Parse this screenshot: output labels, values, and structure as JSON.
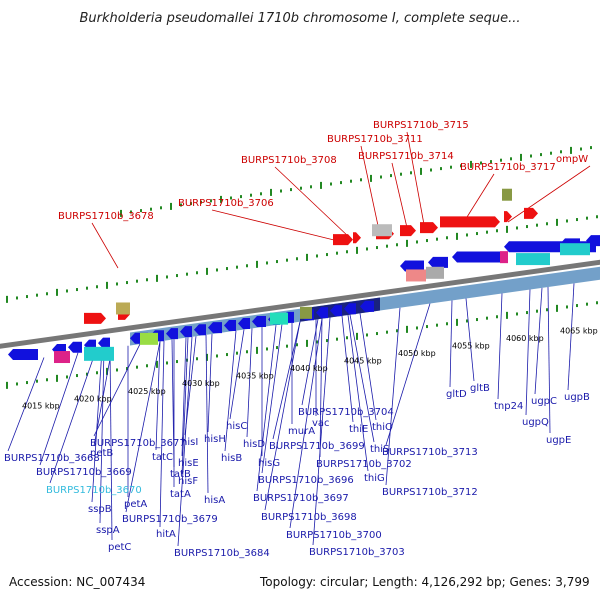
{
  "title": "Burkholderia pseudomallei 1710b chromosome I, complete seque...",
  "footer": {
    "accession": "Accession: NC_007434",
    "topology": "Topology: circular; Length: 4,126,292 bp; Genes: 3,799"
  },
  "colors": {
    "upper_label": "#cc0000",
    "lower_label": "#1a1aaa",
    "highlight_label": "#33bbdd",
    "strand_plus": "#ee1111",
    "strand_minus": "#1111dd",
    "tick": "#228822",
    "backbone": "#777777"
  },
  "kbp_labels": [
    "4015 kbp",
    "4020 kbp",
    "4025 kbp",
    "4030 kbp",
    "4035 kbp",
    "4040 kbp",
    "4045 kbp",
    "4050 kbp",
    "4055 kbp",
    "4060 kbp",
    "4065 kbp"
  ],
  "upper_labels": [
    "BURPS1710b_3715",
    "BURPS1710b_3711",
    "BURPS1710b_3714",
    "BURPS1710b_3708",
    "BURPS1710b_3717",
    "ompW",
    "BURPS1710b_3706",
    "BURPS1710b_3678"
  ],
  "lower_labels": [
    "BURPS1710b_3704",
    "thiO",
    "vac",
    "thiE",
    "thiS",
    "murA",
    "BURPS1710b_3699",
    "BURPS1710b_3702",
    "thiG",
    "BURPS1710b_3696",
    "BURPS1710b_3697",
    "BURPS1710b_3698",
    "BURPS1710b_3700",
    "BURPS1710b_3703",
    "hisC",
    "hisD",
    "hisG",
    "hisB",
    "hisH",
    "hisI",
    "hisE",
    "hisF",
    "hisA",
    "BURPS1710b_3677",
    "tatC",
    "tatB",
    "tatA",
    "BURPS1710b_3679",
    "hitA",
    "BURPS1710b_3684",
    "BURPS1710b_3668",
    "BURPS1710b_3669",
    "BURPS1710b_3670",
    "petB",
    "petA",
    "sspB",
    "sspA",
    "petC",
    "BURPS1710b_3713",
    "BURPS1710b_3712",
    "gltD",
    "gltB",
    "tnp24",
    "ugpC",
    "ugpQ",
    "ugpE",
    "ugpB"
  ]
}
